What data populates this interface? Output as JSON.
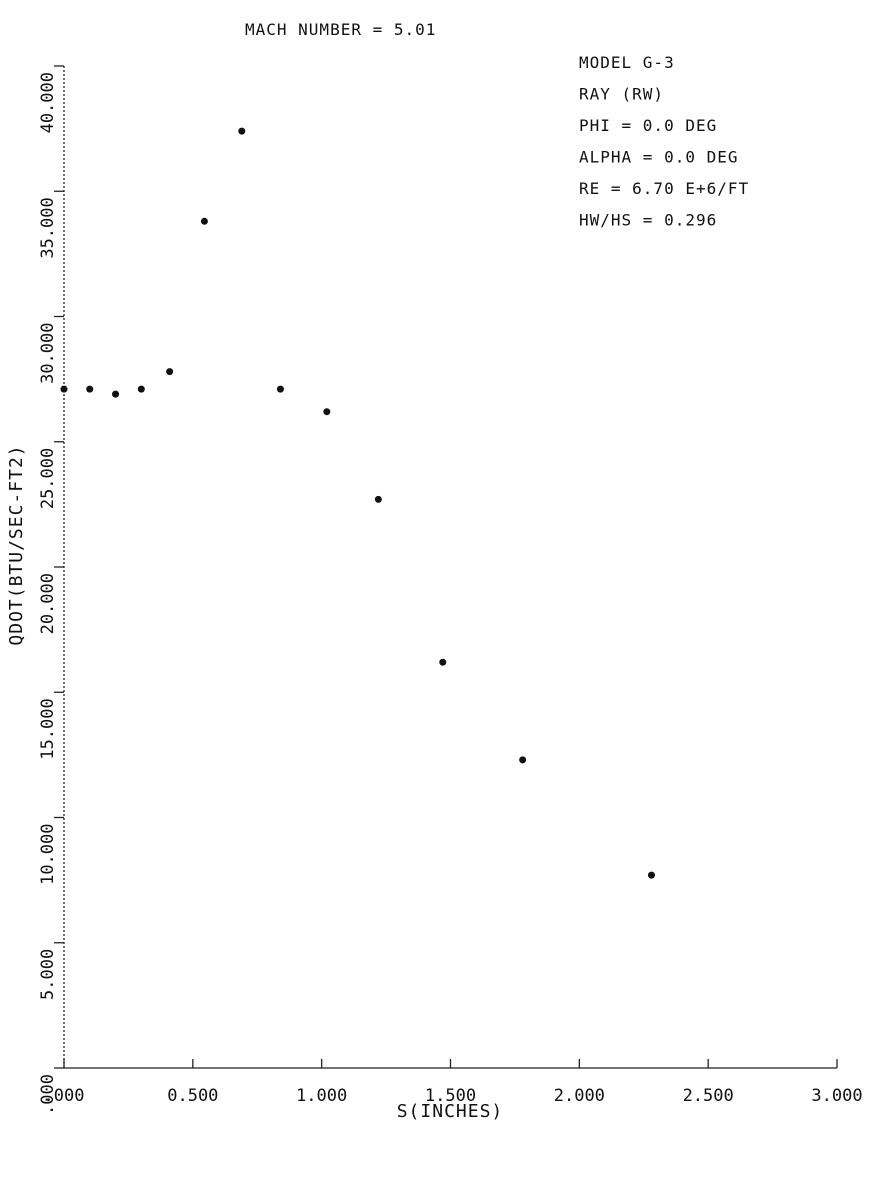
{
  "chart_data": {
    "type": "scatter",
    "title": "MACH NUMBER = 5.01",
    "xlabel": "S(INCHES)",
    "ylabel": "QDOT(BTU/SEC-FT2)",
    "xlim": [
      0,
      3.0
    ],
    "ylim": [
      0,
      40.0
    ],
    "grid": false,
    "x_ticks": [
      0,
      0.5,
      1.0,
      1.5,
      2.0,
      2.5,
      3.0
    ],
    "x_tick_labels": [
      ".000",
      "0.500",
      "1.000",
      "1.500",
      "2.000",
      "2.500",
      "3.000"
    ],
    "y_ticks": [
      0,
      5,
      10,
      15,
      20,
      25,
      30,
      35,
      40
    ],
    "y_tick_labels": [
      ".000",
      "5.000",
      "10.000",
      "15.000",
      "20.000",
      "25.000",
      "30.000",
      "35.000",
      "40.000"
    ],
    "series": [
      {
        "x": [
          0.0,
          0.1,
          0.2,
          0.3,
          0.41,
          0.545,
          0.69,
          0.84,
          1.02,
          1.22,
          1.47,
          1.78,
          2.28
        ],
        "y": [
          27.1,
          27.1,
          26.9,
          27.1,
          27.8,
          33.8,
          37.4,
          27.1,
          26.2,
          22.7,
          16.2,
          12.3,
          7.7
        ]
      }
    ],
    "annotations": [
      "MODEL G-3",
      "RAY (RW)",
      "PHI = 0.0 DEG",
      "ALPHA = 0.0 DEG",
      "RE = 6.70 E+6/FT",
      "HW/HS = 0.296"
    ]
  }
}
